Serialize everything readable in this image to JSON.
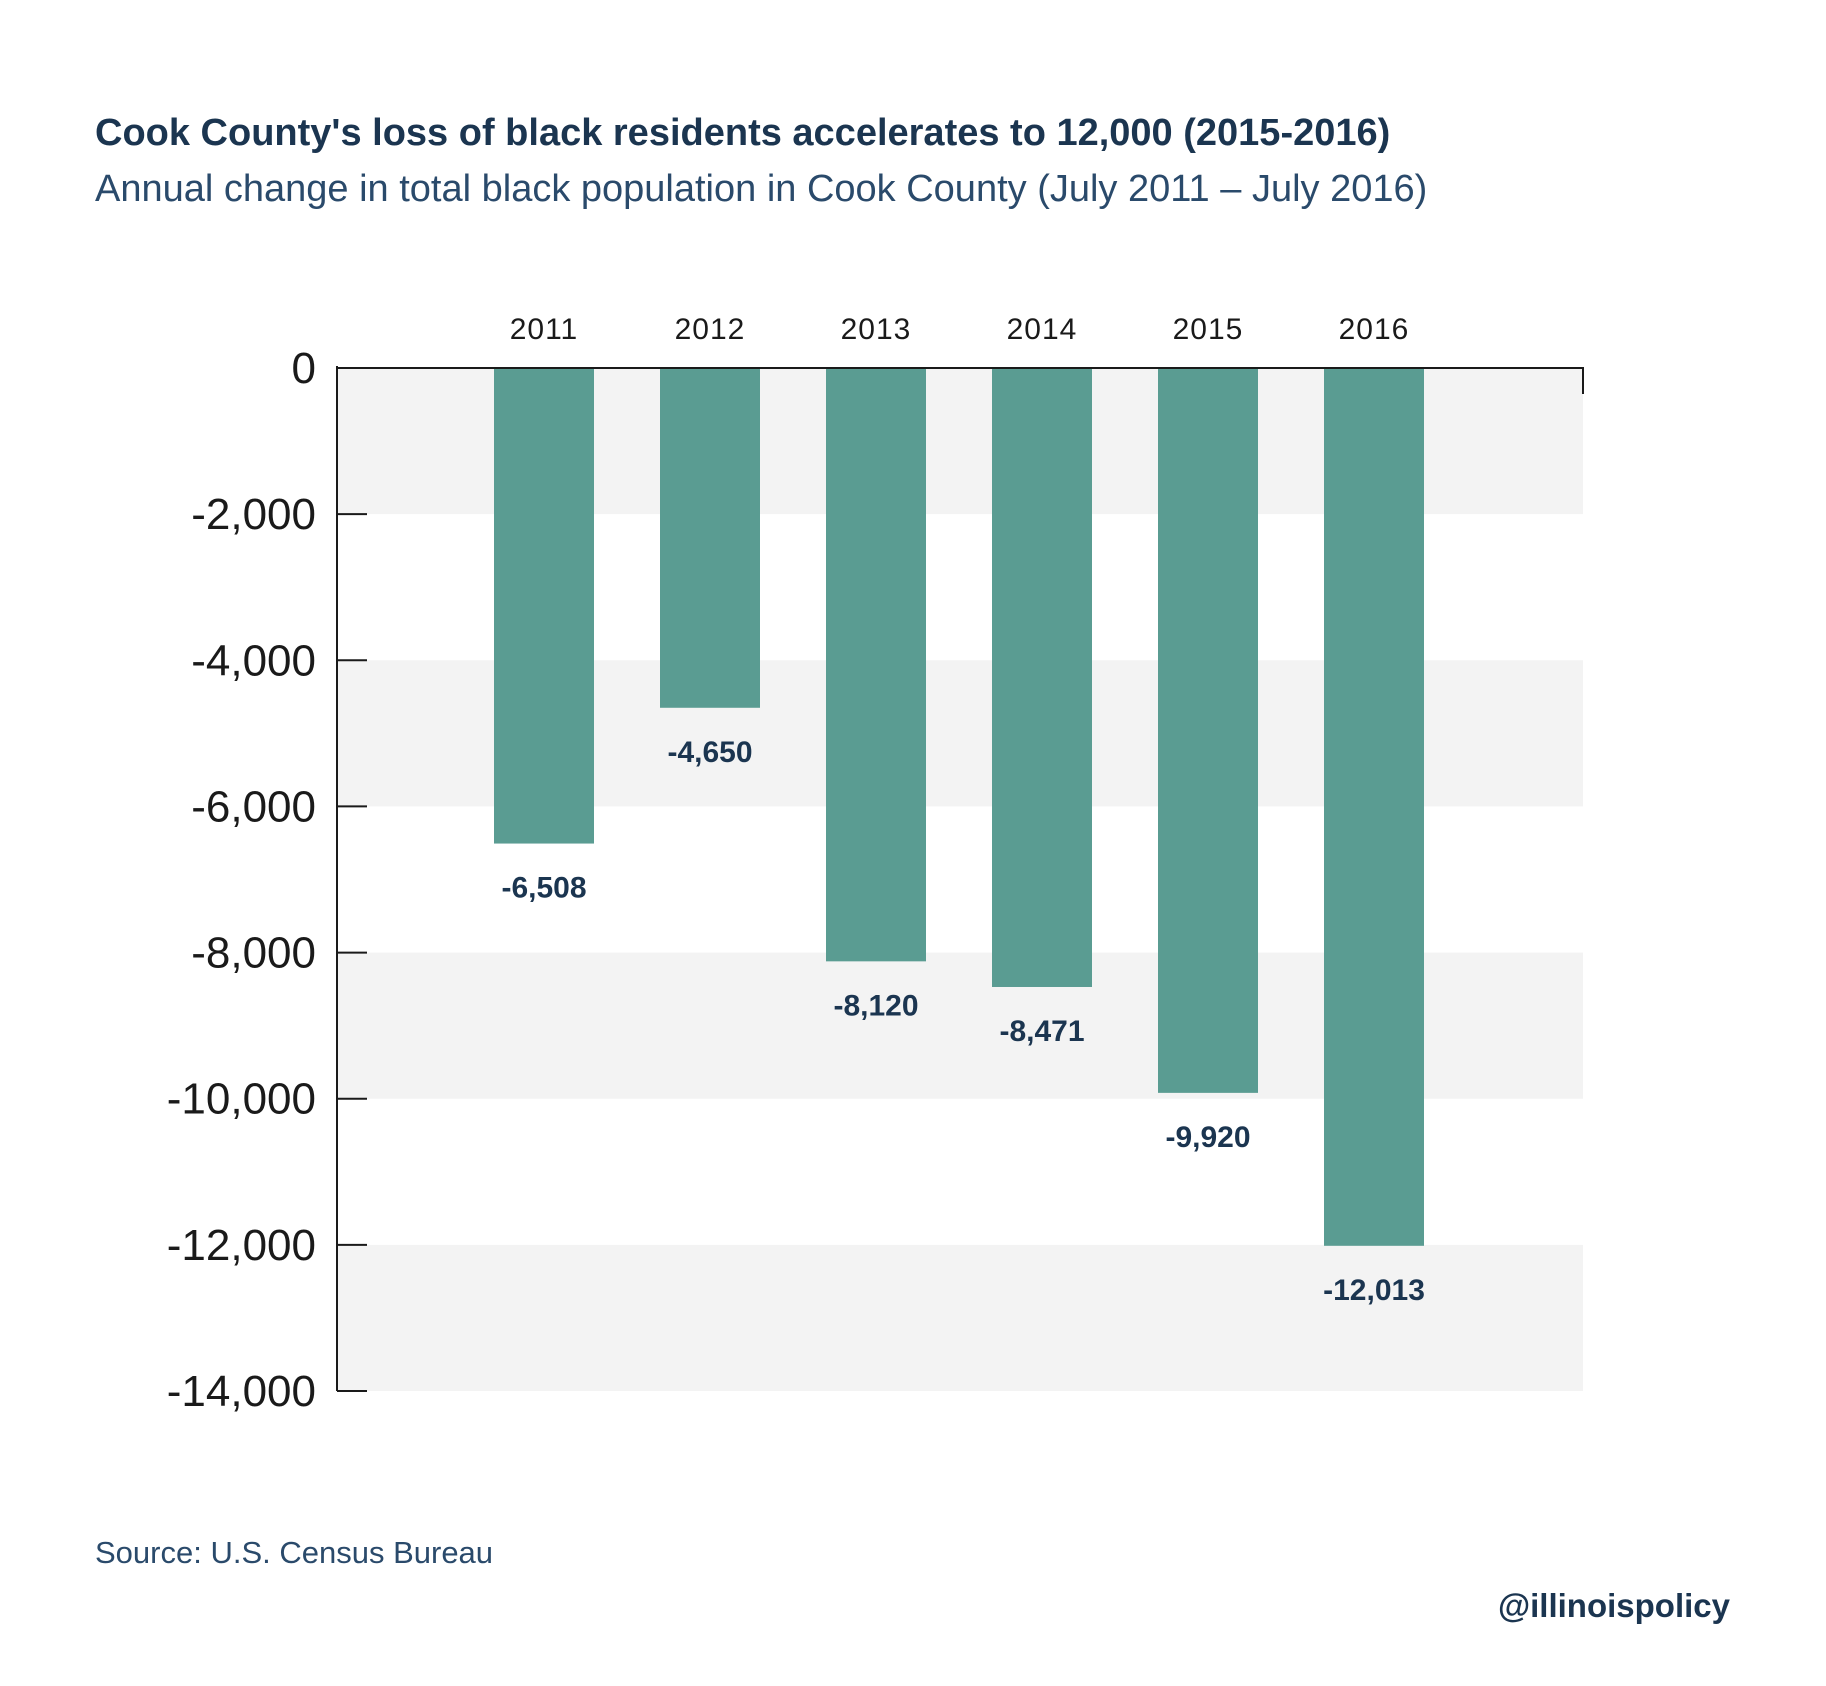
{
  "footer": {
    "source": "Source:  U.S. Census Bureau",
    "handle": "@illinoispolicy"
  },
  "colors": {
    "bar": "#5a9c92",
    "band": "#f3f3f3",
    "axis": "#1a1a1a",
    "label": "#1b3550",
    "title": "#1b3550"
  },
  "chart_data": {
    "type": "bar",
    "title": "Cook County's loss of black residents accelerates to 12,000 (2015-2016)",
    "subtitle": "Annual change in total black population in Cook County (July 2011 – July 2016)",
    "categories": [
      "2011",
      "2012",
      "2013",
      "2014",
      "2015",
      "2016"
    ],
    "values": [
      -6508,
      -4650,
      -8120,
      -8471,
      -9920,
      -12013
    ],
    "data_labels": [
      "-6,508",
      "-4,650",
      "-8,120",
      "-8,471",
      "-9,920",
      "-12,013"
    ],
    "ylim": [
      -14000,
      0
    ],
    "yticks": [
      0,
      -2000,
      -4000,
      -6000,
      -8000,
      -10000,
      -12000,
      -14000
    ],
    "ytick_labels": [
      "0",
      "-2,000",
      "-4,000",
      "-6,000",
      "-8,000",
      "-10,000",
      "-12,000",
      "-14,000"
    ],
    "xaxis_position": "top",
    "grid": "alternating horizontal bands",
    "legend": "none",
    "xlabel": "",
    "ylabel": ""
  }
}
